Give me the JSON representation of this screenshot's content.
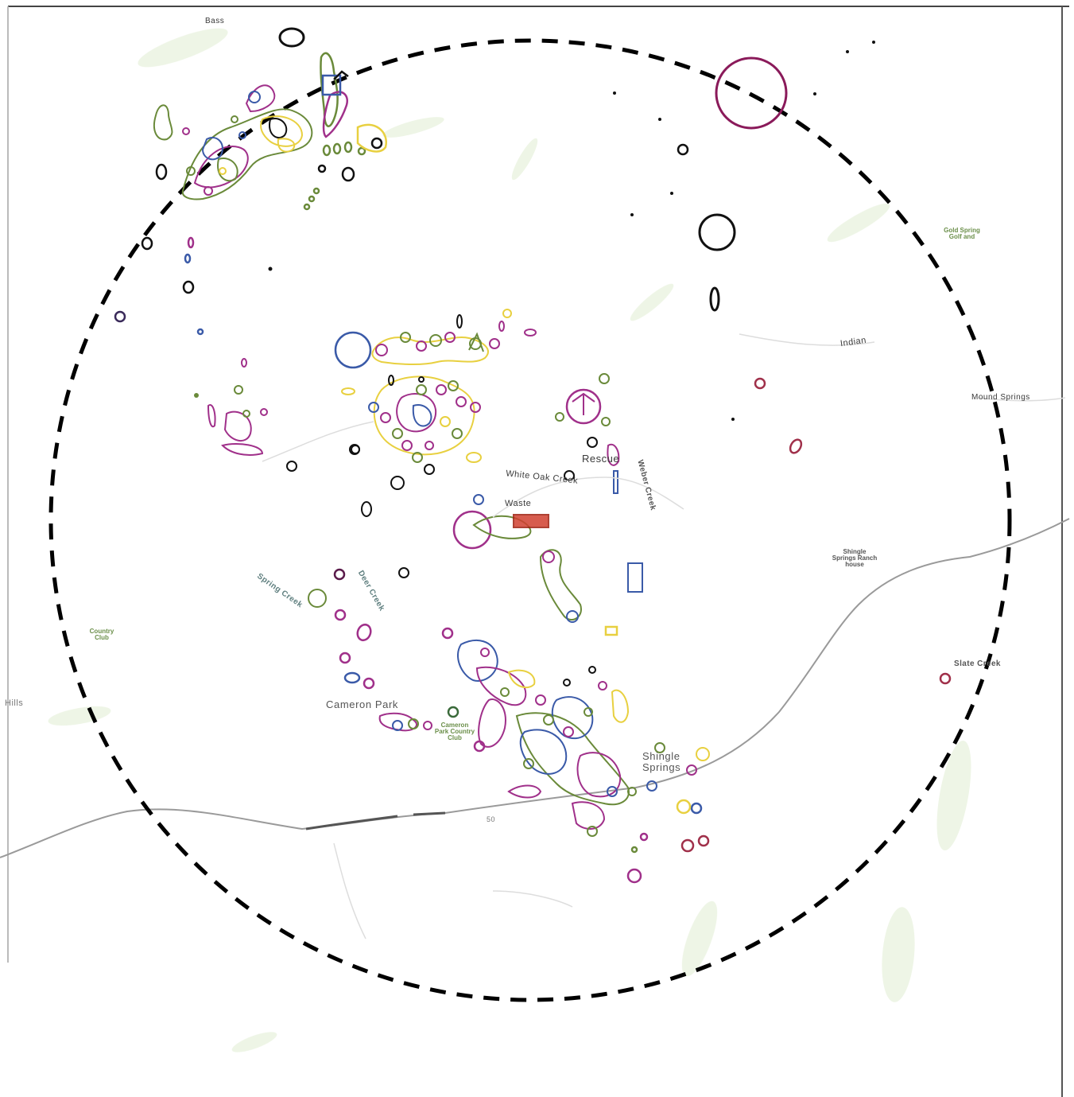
{
  "map": {
    "labels": {
      "cameron_park": "Cameron Park",
      "shingle_springs": "Shingle Springs",
      "rescue": "Rescue",
      "white_oak_creek": "White Oak Creek",
      "waste": "Waste",
      "indian": "Indian",
      "mound_springs": "Mound Springs",
      "shingle_springs_ranch": "Shingle Springs Ranch house",
      "gold_spring_golf": "Gold Spring Golf and",
      "cameron_park_country_club": "Cameron Park Country Club",
      "country_club_left": "Country Club",
      "deer_creek": "Deer Creek",
      "slate_creek": "Slate Creek",
      "weber_creek": "Weber Creek",
      "spring_creek": "Spring Creek",
      "lateral_hills": "Hills",
      "highway_label": "50",
      "bass": "Bass"
    },
    "colors": {
      "background": "#ffffff",
      "boundary_circle": "#000000",
      "highway": "#9a9a9a",
      "vegetation": "#cfe3b8",
      "feature_green": "#6a8a3a",
      "feature_magenta": "#a0308a",
      "feature_blue": "#3a5aa8",
      "feature_yellow": "#e8d040",
      "feature_black": "#111111"
    },
    "icons": {
      "boundary": "dashed-circle-boundary",
      "observation": "circle-marker-icon"
    }
  }
}
